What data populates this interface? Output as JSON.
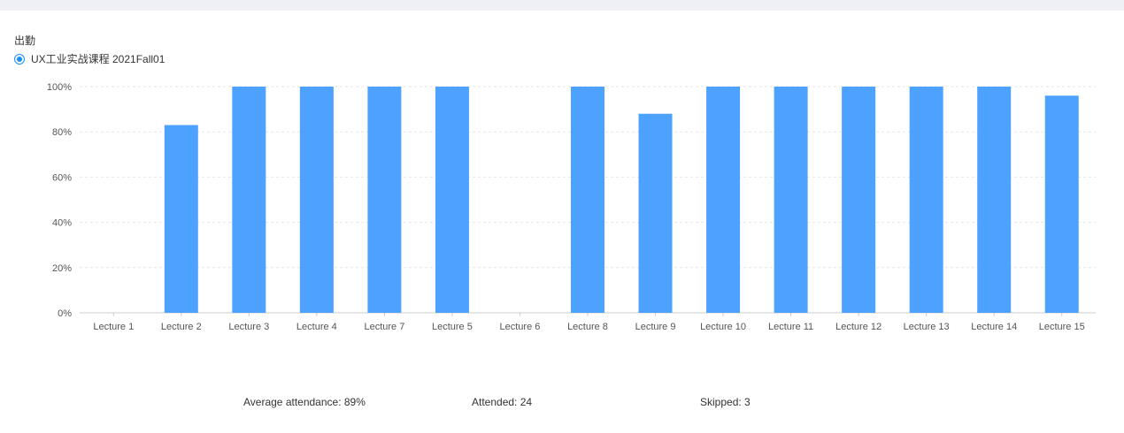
{
  "title": "出勤",
  "legend": {
    "label": "UX工业实战课程 2021Fall01",
    "selected": true
  },
  "colors": {
    "bar": "#4da2ff",
    "grid": "#e6e6e6",
    "axis": "#cccccc",
    "accent": "#1890ff"
  },
  "chart_data": {
    "type": "bar",
    "categories": [
      "Lecture 1",
      "Lecture 2",
      "Lecture 3",
      "Lecture 4",
      "Lecture 7",
      "Lecture 5",
      "Lecture 6",
      "Lecture 8",
      "Lecture 9",
      "Lecture 10",
      "Lecture 11",
      "Lecture 12",
      "Lecture 13",
      "Lecture 14",
      "Lecture 15"
    ],
    "series": [
      {
        "name": "UX工业实战课程 2021Fall01",
        "values": [
          0,
          83,
          100,
          100,
          100,
          100,
          0,
          100,
          88,
          100,
          100,
          100,
          100,
          100,
          96
        ]
      }
    ],
    "yticks": [
      "0%",
      "20%",
      "40%",
      "60%",
      "80%",
      "100%"
    ],
    "ylim": [
      0,
      100
    ],
    "grid": true,
    "legend_position": "top-left"
  },
  "stats": {
    "average": "Average attendance: 89%",
    "attended": "Attended: 24",
    "skipped": "Skipped: 3"
  }
}
